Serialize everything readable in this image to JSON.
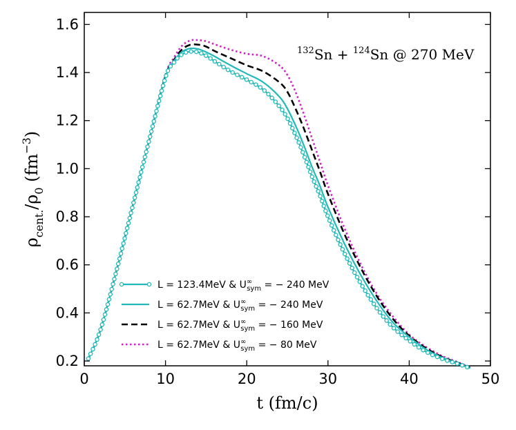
{
  "chart_data": {
    "type": "line",
    "title": "",
    "annotation": {
      "iso1_mass": "132",
      "iso1": "Sn",
      "plus": "+",
      "iso2_mass": "124",
      "iso2": "Sn",
      "rest": "@ 270 MeV"
    },
    "xlabel": "t (fm/c)",
    "ylabel": {
      "rho": "ρ",
      "sub": "cent.",
      "slash": "/ρ",
      "sub0": "0",
      "unit_open": "(fm",
      "unit_exp": "−3",
      "unit_close": ")"
    },
    "xlim": [
      0,
      50
    ],
    "ylim": [
      0.18,
      1.65
    ],
    "xticks": [
      "0",
      "10",
      "20",
      "30",
      "40",
      "50"
    ],
    "yticks": [
      "0.2",
      "0.4",
      "0.6",
      "0.8",
      "1.0",
      "1.2",
      "1.4",
      "1.6"
    ],
    "xtick_values": [
      0,
      10,
      20,
      30,
      40,
      50
    ],
    "ytick_values": [
      0.2,
      0.4,
      0.6,
      0.8,
      1.0,
      1.2,
      1.4,
      1.6
    ],
    "legend_position": "bottom-left",
    "series": [
      {
        "name": "L = 123.4MeV & U∞sym = − 240 MeV",
        "legend": {
          "pre": "L = 123.4MeV & U",
          "sup": "∞",
          "sub": "sym",
          "post": " = − 240 MeV"
        },
        "color": "#20b8b8",
        "style": "solid-circles",
        "x": [
          0.5,
          2,
          4,
          6,
          8,
          10,
          11,
          12,
          13,
          14,
          15,
          16,
          18,
          20,
          22,
          24,
          25,
          26,
          27,
          28,
          29,
          30,
          32,
          34,
          36,
          38,
          40,
          42,
          44,
          46,
          47.5
        ],
        "y": [
          0.21,
          0.33,
          0.58,
          0.85,
          1.12,
          1.38,
          1.44,
          1.475,
          1.487,
          1.485,
          1.47,
          1.448,
          1.405,
          1.37,
          1.33,
          1.26,
          1.21,
          1.14,
          1.06,
          0.97,
          0.89,
          0.8,
          0.65,
          0.525,
          0.42,
          0.34,
          0.285,
          0.24,
          0.21,
          0.188,
          0.17
        ]
      },
      {
        "name": "L = 62.7MeV & U∞sym = − 240 MeV",
        "legend": {
          "pre": "L = 62.7MeV & U",
          "sup": "∞",
          "sub": "sym",
          "post": " = − 240 MeV"
        },
        "color": "#20b8b8",
        "style": "solid",
        "x": [
          0.5,
          2,
          4,
          6,
          8,
          10,
          11,
          12,
          13,
          14,
          15,
          16,
          18,
          20,
          22,
          24,
          25,
          26,
          27,
          28,
          29,
          30,
          32,
          34,
          36,
          38,
          40,
          42,
          44,
          46,
          47.5
        ],
        "y": [
          0.21,
          0.33,
          0.58,
          0.85,
          1.12,
          1.38,
          1.445,
          1.485,
          1.5,
          1.498,
          1.485,
          1.468,
          1.43,
          1.395,
          1.36,
          1.3,
          1.25,
          1.18,
          1.1,
          1.01,
          0.93,
          0.84,
          0.69,
          0.56,
          0.45,
          0.36,
          0.3,
          0.25,
          0.215,
          0.19,
          0.17
        ]
      },
      {
        "name": "L = 62.7MeV & U∞sym = − 160 MeV",
        "legend": {
          "pre": "L = 62.7MeV & U",
          "sup": "∞",
          "sub": "sym",
          "post": " = − 160 MeV"
        },
        "color": "#000000",
        "style": "dashed",
        "x": [
          0.5,
          2,
          4,
          6,
          8,
          10,
          11,
          12,
          13,
          14,
          15,
          16,
          18,
          20,
          22,
          24,
          25,
          26,
          27,
          28,
          29,
          30,
          32,
          34,
          36,
          38,
          40,
          42,
          44,
          46,
          47.5
        ],
        "y": [
          0.21,
          0.33,
          0.58,
          0.85,
          1.12,
          1.385,
          1.45,
          1.495,
          1.515,
          1.516,
          1.508,
          1.49,
          1.46,
          1.43,
          1.405,
          1.36,
          1.32,
          1.25,
          1.17,
          1.08,
          0.99,
          0.895,
          0.73,
          0.59,
          0.47,
          0.375,
          0.305,
          0.255,
          0.218,
          0.192,
          0.172
        ]
      },
      {
        "name": "L = 62.7MeV & U∞sym = − 80 MeV",
        "legend": {
          "pre": "L = 62.7MeV & U",
          "sup": "∞",
          "sub": "sym",
          "post": " = − 80 MeV"
        },
        "color": "#d020c8",
        "style": "dotted",
        "x": [
          0.5,
          2,
          4,
          6,
          8,
          10,
          11,
          12,
          13,
          14,
          15,
          16,
          18,
          20,
          22,
          24,
          25,
          26,
          27,
          28,
          29,
          30,
          32,
          34,
          36,
          38,
          40,
          42,
          44,
          46,
          47.5
        ],
        "y": [
          0.21,
          0.33,
          0.58,
          0.85,
          1.12,
          1.39,
          1.46,
          1.51,
          1.533,
          1.535,
          1.53,
          1.518,
          1.495,
          1.478,
          1.468,
          1.43,
          1.39,
          1.32,
          1.23,
          1.13,
          1.03,
          0.93,
          0.755,
          0.605,
          0.48,
          0.385,
          0.31,
          0.26,
          0.222,
          0.195,
          0.173
        ]
      }
    ]
  }
}
